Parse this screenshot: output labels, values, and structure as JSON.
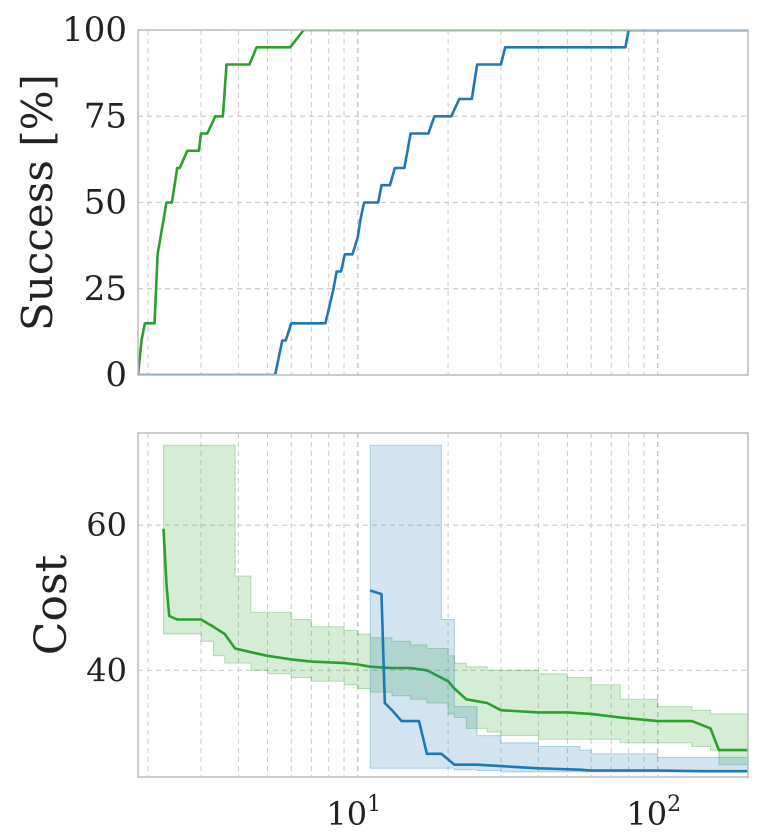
{
  "chart_data": [
    {
      "type": "line",
      "ylabel": "Success [%]",
      "xlabel": "",
      "xscale": "log",
      "xlim": [
        1.85,
        200
      ],
      "ylim": [
        0,
        100
      ],
      "yticks": [
        0,
        25,
        50,
        75,
        100
      ],
      "ytick_labels": [
        "0",
        "25",
        "50",
        "75",
        "100"
      ],
      "grid": true,
      "series": [
        {
          "color": "#2ca02c",
          "x": [
            1.85,
            1.9,
            1.95,
            2.0,
            2.1,
            2.15,
            2.25,
            2.3,
            2.4,
            2.5,
            2.55,
            2.7,
            2.85,
            2.95,
            3.0,
            3.15,
            3.35,
            3.55,
            3.65,
            3.9,
            4.35,
            4.6,
            4.8,
            5.25,
            5.95,
            6.6,
            200
          ],
          "y": [
            0,
            10,
            15,
            15,
            15,
            35,
            45,
            50,
            50,
            60,
            60,
            65,
            65,
            65,
            70,
            70,
            75,
            75,
            90,
            90,
            90,
            95,
            95,
            95,
            95,
            100,
            100
          ]
        },
        {
          "color": "#1f77b4",
          "x": [
            1.85,
            5.3,
            5.45,
            5.6,
            5.75,
            6.0,
            7.8,
            8.05,
            8.3,
            8.5,
            8.8,
            9.05,
            9.6,
            10.0,
            10.2,
            10.5,
            11.7,
            12.0,
            12.8,
            13.3,
            14.3,
            15.0,
            17.2,
            18.0,
            20.5,
            21.8,
            24.0,
            25.0,
            30.0,
            31.0,
            78.0,
            80.0,
            200
          ],
          "y": [
            0,
            0,
            5,
            10,
            10,
            15,
            15,
            20,
            25,
            30,
            30,
            35,
            35,
            40,
            45,
            50,
            50,
            55,
            55,
            60,
            60,
            70,
            70,
            75,
            75,
            80,
            80,
            90,
            90,
            95,
            95,
            100,
            100
          ]
        }
      ]
    },
    {
      "type": "line",
      "ylabel": "Cost",
      "xlabel": "",
      "xscale": "log",
      "xlim": [
        1.85,
        200
      ],
      "ylim": [
        25.3,
        72.7
      ],
      "yticks": [
        40,
        60
      ],
      "ytick_labels": [
        "40",
        "60"
      ],
      "xticks": [
        10,
        100
      ],
      "xtick_labels": [
        {
          "base": "10",
          "exp": "1"
        },
        {
          "base": "10",
          "exp": "2"
        }
      ],
      "grid": true,
      "series": [
        {
          "color": "#2ca02c",
          "band_opacity": 0.2,
          "x": [
            2.25,
            2.3,
            2.35,
            2.5,
            3.0,
            3.3,
            3.6,
            3.9,
            4.4,
            5.0,
            6.0,
            7.0,
            9.0,
            10.0,
            11.0,
            13.0,
            15.0,
            17.0,
            20.0,
            21.0,
            23.0,
            27.0,
            30.0,
            40.0,
            50.0,
            60.0,
            75.0,
            100.0,
            130.0,
            150.0,
            160.0,
            200.0
          ],
          "y": [
            59.5,
            52.0,
            47.5,
            47.0,
            47.0,
            46.0,
            45.0,
            43.0,
            42.5,
            42.0,
            41.5,
            41.2,
            41.0,
            40.8,
            40.5,
            40.3,
            40.3,
            40.0,
            38.5,
            37.5,
            36.0,
            35.5,
            34.5,
            34.2,
            34.2,
            34.0,
            33.5,
            33.0,
            33.0,
            32.0,
            29.0,
            29.0
          ],
          "upper": [
            71.0,
            71.0,
            71.0,
            71.0,
            71.0,
            71.0,
            71.0,
            53.0,
            48.0,
            48.0,
            47.0,
            46.0,
            45.5,
            45.0,
            44.5,
            44.0,
            43.5,
            43.0,
            42.0,
            41.0,
            40.5,
            40.0,
            40.0,
            39.5,
            39.0,
            38.0,
            36.0,
            35.0,
            34.5,
            34.0,
            34.0,
            34.0
          ],
          "lower": [
            45.0,
            45.0,
            45.0,
            45.0,
            44.0,
            42.0,
            41.0,
            41.0,
            40.0,
            39.5,
            39.0,
            38.5,
            38.0,
            37.5,
            37.0,
            36.5,
            36.0,
            35.5,
            34.0,
            33.5,
            32.0,
            31.5,
            31.0,
            30.5,
            30.5,
            30.5,
            30.0,
            30.0,
            29.5,
            29.0,
            27.0,
            26.0
          ]
        },
        {
          "color": "#1f77b4",
          "band_opacity": 0.2,
          "x": [
            11.0,
            12.0,
            12.3,
            13.0,
            14.0,
            16.0,
            17.0,
            19.0,
            21.0,
            25.0,
            30.0,
            40.0,
            55.0,
            60.0,
            75.0,
            100.0,
            140.0,
            200.0
          ],
          "y": [
            51.0,
            50.5,
            35.5,
            34.5,
            33.0,
            33.0,
            28.5,
            28.5,
            27.0,
            27.0,
            26.8,
            26.5,
            26.3,
            26.2,
            26.2,
            26.2,
            26.1,
            26.1
          ],
          "upper": [
            71.0,
            71.0,
            71.0,
            71.0,
            71.0,
            71.0,
            71.0,
            47.0,
            35.0,
            31.0,
            30.0,
            29.5,
            29.0,
            28.5,
            28.5,
            28.0,
            28.0,
            28.0
          ],
          "lower": [
            26.5,
            26.5,
            26.5,
            26.5,
            26.5,
            26.5,
            26.5,
            26.5,
            26.3,
            26.2,
            26.0,
            26.0,
            26.0,
            26.0,
            26.0,
            26.0,
            26.0,
            26.0
          ]
        }
      ]
    }
  ]
}
